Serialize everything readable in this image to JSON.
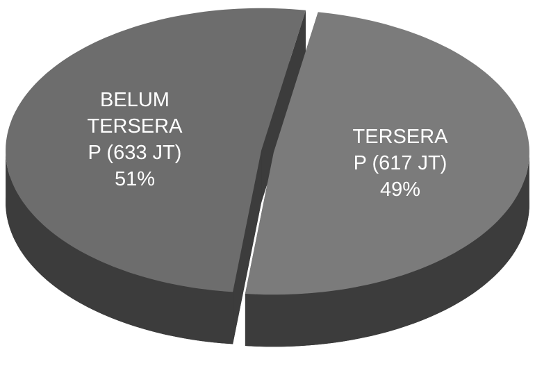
{
  "chart_data": {
    "type": "pie",
    "three_d": true,
    "categories": [
      "BELUM TERSERAP (633 JT)",
      "TERSERAP (617 JT)"
    ],
    "values": [
      51,
      49
    ],
    "value_labels": [
      "51%",
      "49%"
    ],
    "colors": [
      "#6d6d6d",
      "#7b7b7b"
    ]
  }
}
